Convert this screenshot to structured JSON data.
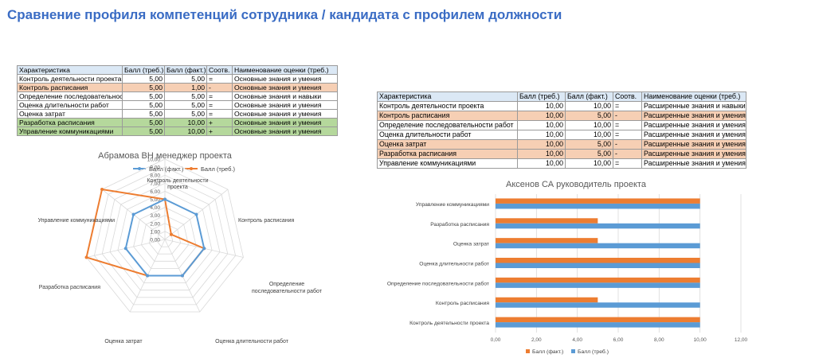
{
  "page_title": "Сравнение профиля компетенций сотрудника / кандидата с профилем должности",
  "table1": {
    "headers": [
      "Характеристика",
      "Балл (треб.)",
      "Балл (факт.)",
      "Соотв.",
      "Наименование оценки (треб.)"
    ],
    "rows": [
      {
        "name": "Контроль деятельности проекта",
        "req": "5,00",
        "fact": "5,00",
        "match": "=",
        "level": "Основные знания и умения",
        "color": "white"
      },
      {
        "name": "Контроль расписания",
        "req": "5,00",
        "fact": "1,00",
        "match": "-",
        "level": "Основные знания и умения",
        "color": "orange"
      },
      {
        "name": "Определение последовательност",
        "req": "5,00",
        "fact": "5,00",
        "match": "=",
        "level": "Основные знания и навыки",
        "color": "white"
      },
      {
        "name": "Оценка длительности работ",
        "req": "5,00",
        "fact": "5,00",
        "match": "=",
        "level": "Основные знания и умения",
        "color": "white"
      },
      {
        "name": "Оценка затрат",
        "req": "5,00",
        "fact": "5,00",
        "match": "=",
        "level": "Основные знания и умения",
        "color": "white"
      },
      {
        "name": "Разработка расписания",
        "req": "5,00",
        "fact": "10,00",
        "match": "+",
        "level": "Основные знания и умения",
        "color": "green"
      },
      {
        "name": "Управление коммуникациями",
        "req": "5,00",
        "fact": "10,00",
        "match": "+",
        "level": "Основные знания и умения",
        "color": "green"
      }
    ]
  },
  "table2": {
    "headers": [
      "Характеристика",
      "Балл (треб.)",
      "Балл (факт.)",
      "Соотв.",
      "Наименование оценки (треб.)"
    ],
    "rows": [
      {
        "name": "Контроль деятельности проекта",
        "req": "10,00",
        "fact": "10,00",
        "match": "=",
        "level": "Расширенные знания и навыки",
        "color": "white"
      },
      {
        "name": "Контроль расписания",
        "req": "10,00",
        "fact": "5,00",
        "match": "-",
        "level": "Расширенные знания и умения",
        "color": "orange"
      },
      {
        "name": "Определение последовательности работ",
        "req": "10,00",
        "fact": "10,00",
        "match": "=",
        "level": "Расширенные знания и умения",
        "color": "white"
      },
      {
        "name": "Оценка длительности работ",
        "req": "10,00",
        "fact": "10,00",
        "match": "=",
        "level": "Расширенные знания и умения",
        "color": "white"
      },
      {
        "name": "Оценка затрат",
        "req": "10,00",
        "fact": "5,00",
        "match": "-",
        "level": "Расширенные знания и умения",
        "color": "orange"
      },
      {
        "name": "Разработка расписания",
        "req": "10,00",
        "fact": "5,00",
        "match": "-",
        "level": "Расширенные знания и умения",
        "color": "orange"
      },
      {
        "name": "Управление коммуникациями",
        "req": "10,00",
        "fact": "10,00",
        "match": "=",
        "level": "Расширенные знания и умения",
        "color": "white"
      }
    ]
  },
  "colors": {
    "required": "#5b9bd5",
    "actual": "#ed7d31",
    "orange_row": "#f6cfb4",
    "green_row": "#b5d89c",
    "header_row": "#dbe8f5",
    "title": "#3a6cc4"
  },
  "chart_data": [
    {
      "type": "radar",
      "title": "Абрамова ВН менеджер проекта",
      "categories": [
        "Контроль деятельности проекта",
        "Контроль расписания",
        "Определение последовательности работ",
        "Оценка длительности работ",
        "Оценка затрат",
        "Разработка расписания",
        "Управление коммуникациями"
      ],
      "series": [
        {
          "name": "Балл (треб.)",
          "values": [
            5,
            5,
            5,
            5,
            5,
            5,
            5
          ]
        },
        {
          "name": "Балл (факт.)",
          "values": [
            5,
            1,
            5,
            5,
            5,
            10,
            10
          ]
        }
      ],
      "r_ticks": [
        "0,00",
        "1,00",
        "2,00",
        "3,00",
        "4,00",
        "5,00",
        "6,00",
        "7,00",
        "8,00",
        "9,00",
        "10,00"
      ],
      "rlim": [
        0,
        10
      ],
      "legend": "top"
    },
    {
      "type": "bar",
      "orientation": "horizontal",
      "title": "Аксенов СА руководитель проекта",
      "categories": [
        "Контроль деятельности проекта",
        "Контроль расписания",
        "Определение последовательности работ",
        "Оценка длительности работ",
        "Оценка затрат",
        "Разработка расписания",
        "Управление коммуникациями"
      ],
      "series": [
        {
          "name": "Балл (факт.)",
          "values": [
            10,
            5,
            10,
            10,
            5,
            5,
            10
          ]
        },
        {
          "name": "Балл (треб.)",
          "values": [
            10,
            10,
            10,
            10,
            10,
            10,
            10
          ]
        }
      ],
      "x_ticks": [
        "0,00",
        "2,00",
        "4,00",
        "6,00",
        "8,00",
        "10,00",
        "12,00"
      ],
      "xlim": [
        0,
        12
      ],
      "legend": "bottom"
    }
  ]
}
